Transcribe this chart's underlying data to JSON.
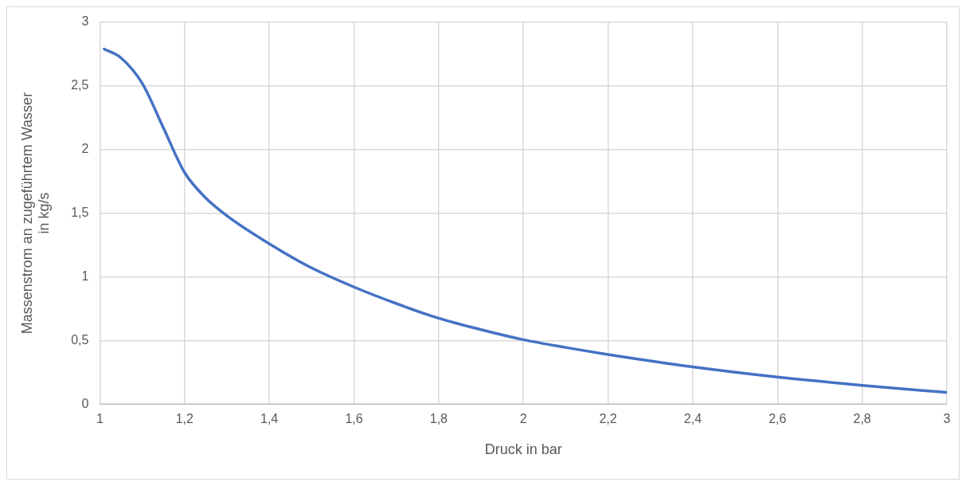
{
  "chart_data": {
    "type": "line",
    "xlabel": "Druck in bar",
    "ylabel": "Massenstrom an zugeführtem Wasser\nin kg/s",
    "series": [
      {
        "color": "#4472c4",
        "x": [
          1.01,
          1.05,
          1.1,
          1.15,
          1.2,
          1.25,
          1.3,
          1.4,
          1.5,
          1.6,
          1.7,
          1.8,
          1.9,
          2.0,
          2.1,
          2.2,
          2.4,
          2.6,
          2.8,
          3.0
        ],
        "values": [
          2.79,
          2.72,
          2.52,
          2.17,
          1.82,
          1.62,
          1.48,
          1.26,
          1.07,
          0.92,
          0.79,
          0.675,
          0.585,
          0.506,
          0.445,
          0.39,
          0.293,
          0.213,
          0.147,
          0.092
        ]
      }
    ],
    "xlim": [
      1,
      3
    ],
    "xticks": [
      1,
      {
        "value": 1.2,
        "label": "1,2"
      },
      {
        "value": 1.4,
        "label": "1,4"
      },
      {
        "value": 1.6,
        "label": "1,6"
      },
      {
        "value": 1.8,
        "label": "1,8"
      },
      2,
      {
        "value": 2.2,
        "label": "2,2"
      },
      {
        "value": 2.4,
        "label": "2,4"
      },
      {
        "value": 2.6,
        "label": "2,6"
      },
      {
        "value": 2.8,
        "label": "2,8"
      },
      3
    ],
    "ylim": [
      0,
      3
    ],
    "yticks": [
      0,
      {
        "value": 0.5,
        "label": "0,5"
      },
      1,
      {
        "value": 1.5,
        "label": "1,5"
      },
      2,
      {
        "value": 2.5,
        "label": "2,5"
      },
      3
    ],
    "grid": true,
    "legend": false,
    "marker": "none",
    "line_style": "solid"
  }
}
